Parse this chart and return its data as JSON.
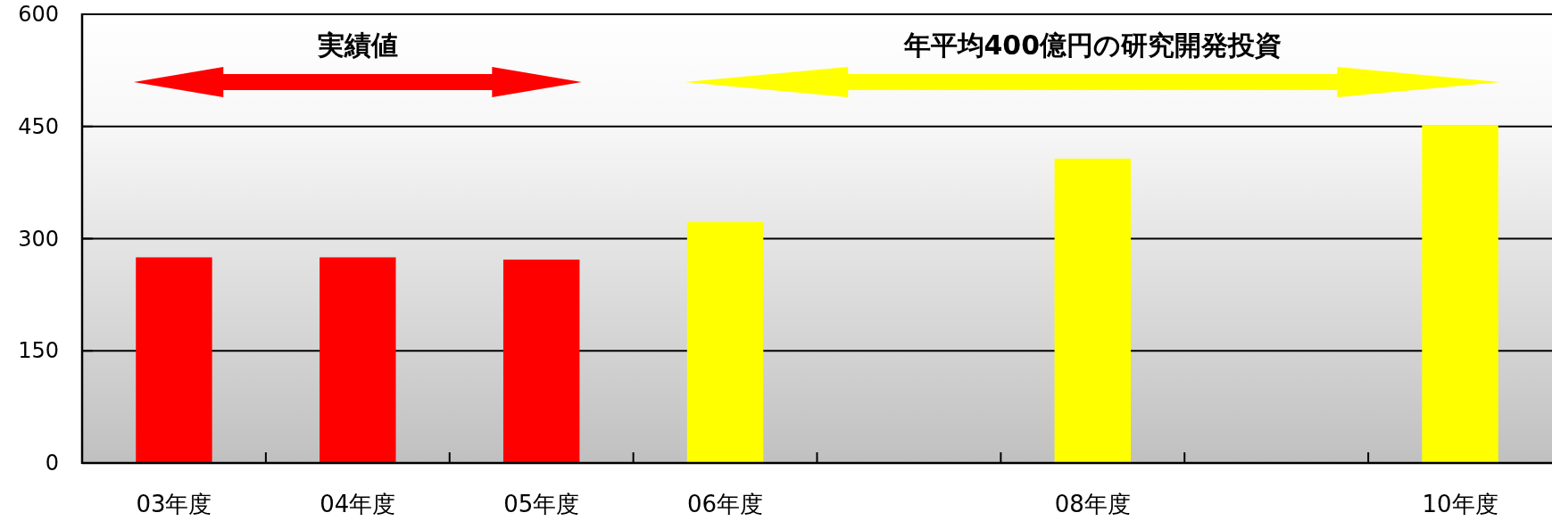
{
  "chart_data": {
    "type": "bar",
    "categories": [
      "03年度",
      "04年度",
      "05年度",
      "06年度",
      null,
      "08年度",
      null,
      "10年度"
    ],
    "values": [
      275,
      275,
      272,
      322,
      null,
      407,
      null,
      452
    ],
    "colors": [
      "#ff0000",
      "#ff0000",
      "#ff0000",
      "#ffff00",
      null,
      "#ffff00",
      null,
      "#ffff00"
    ],
    "ylim": [
      0,
      600
    ],
    "yticks": [
      0,
      150,
      300,
      450,
      600
    ],
    "grid": "y",
    "annotations": [
      "実績値",
      "年平均400億円の研究開発投資"
    ]
  }
}
